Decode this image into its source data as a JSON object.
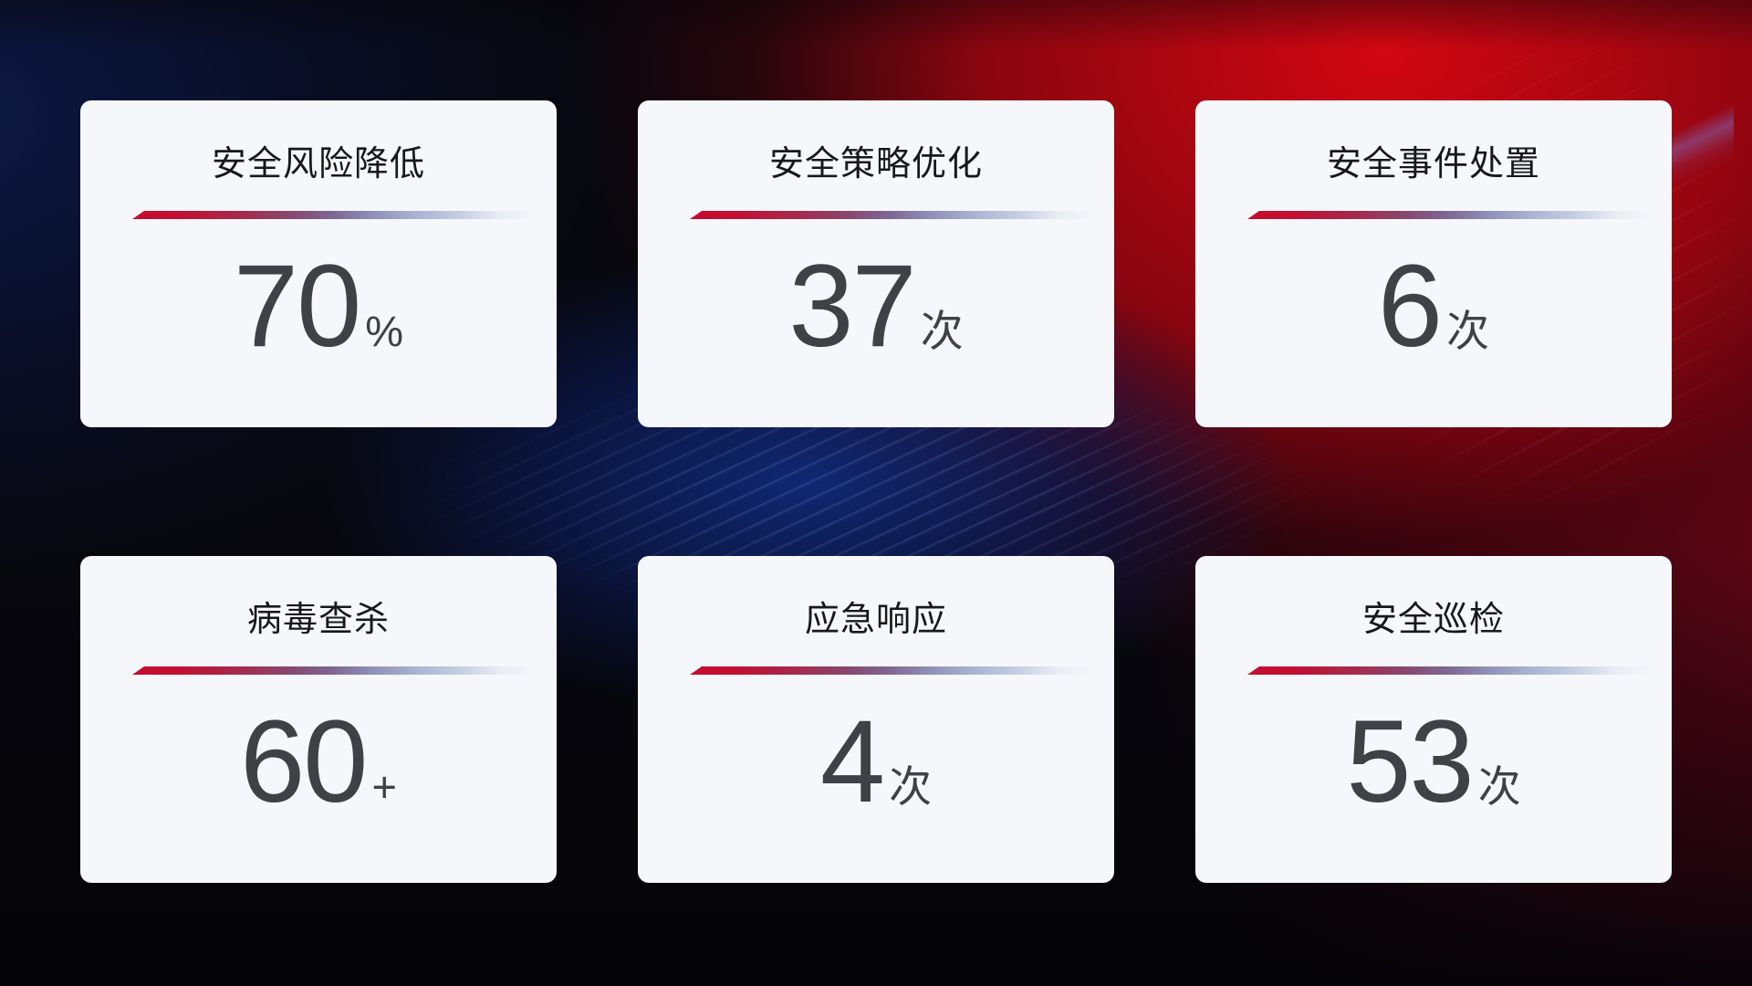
{
  "cards": [
    {
      "title": "安全风险降低",
      "value": "70",
      "unit": "%"
    },
    {
      "title": "安全策略优化",
      "value": "37",
      "unit": "次"
    },
    {
      "title": "安全事件处置",
      "value": "6",
      "unit": "次"
    },
    {
      "title": "病毒查杀",
      "value": "60",
      "unit": "+"
    },
    {
      "title": "应急响应",
      "value": "4",
      "unit": "次"
    },
    {
      "title": "安全巡检",
      "value": "53",
      "unit": "次"
    }
  ],
  "colors": {
    "card_background": "#f5f7fa",
    "title_text": "#17181b",
    "value_text": "#3e4146",
    "divider_red": "#c70b2f",
    "divider_blue": "#a8b4d2",
    "bg_red_glow": "#d20712",
    "bg_blue_glow": "#112a7a",
    "bg_base": "#07070d"
  }
}
